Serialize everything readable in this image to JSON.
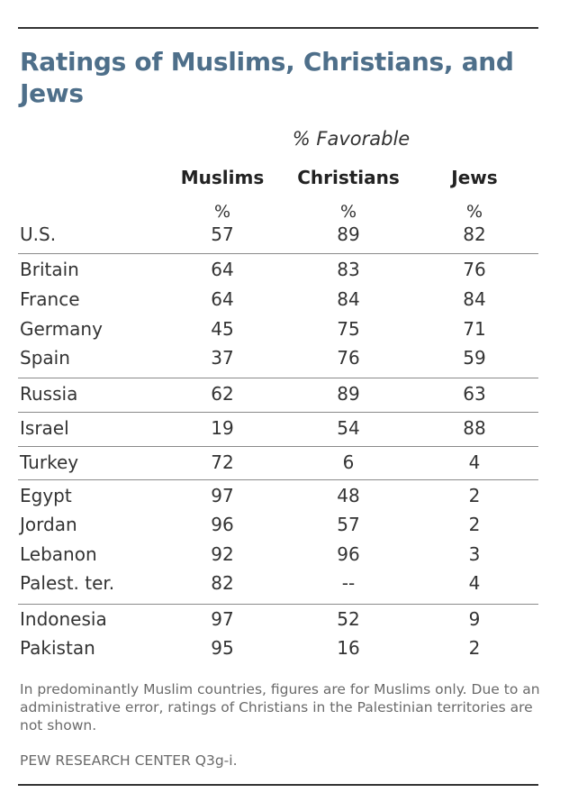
{
  "chart_data": {
    "type": "table",
    "title": "Ratings of Muslims, Christians, and Jews",
    "subtitle": "% Favorable",
    "columns": [
      "Muslims",
      "Christians",
      "Jews"
    ],
    "unit": "%",
    "rows": [
      {
        "country": "U.S.",
        "values": [
          "57",
          "89",
          "82"
        ]
      },
      {
        "country": "Britain",
        "values": [
          "64",
          "83",
          "76"
        ]
      },
      {
        "country": "France",
        "values": [
          "64",
          "84",
          "84"
        ]
      },
      {
        "country": "Germany",
        "values": [
          "45",
          "75",
          "71"
        ]
      },
      {
        "country": "Spain",
        "values": [
          "37",
          "76",
          "59"
        ]
      },
      {
        "country": "Russia",
        "values": [
          "62",
          "89",
          "63"
        ]
      },
      {
        "country": "Israel",
        "values": [
          "19",
          "54",
          "88"
        ]
      },
      {
        "country": "Turkey",
        "values": [
          "72",
          "6",
          "4"
        ]
      },
      {
        "country": "Egypt",
        "values": [
          "97",
          "48",
          "2"
        ]
      },
      {
        "country": "Jordan",
        "values": [
          "96",
          "57",
          "2"
        ]
      },
      {
        "country": "Lebanon",
        "values": [
          "92",
          "96",
          "3"
        ]
      },
      {
        "country": "Palest. ter.",
        "values": [
          "82",
          "--",
          "4"
        ]
      },
      {
        "country": "Indonesia",
        "values": [
          "97",
          "52",
          "9"
        ]
      },
      {
        "country": "Pakistan",
        "values": [
          "95",
          "16",
          "2"
        ]
      }
    ],
    "note": "In predominantly Muslim countries, figures are for Muslims only.  Due to an administrative error, ratings of Christians in the Palestinian territories are not shown.",
    "source": "PEW RESEARCH CENTER Q3g-i."
  },
  "colors": {
    "title": "#4e6f8a",
    "text": "#333333",
    "note": "#6a6a6a",
    "rule": "#333333",
    "divider": "#8a8a8a"
  }
}
